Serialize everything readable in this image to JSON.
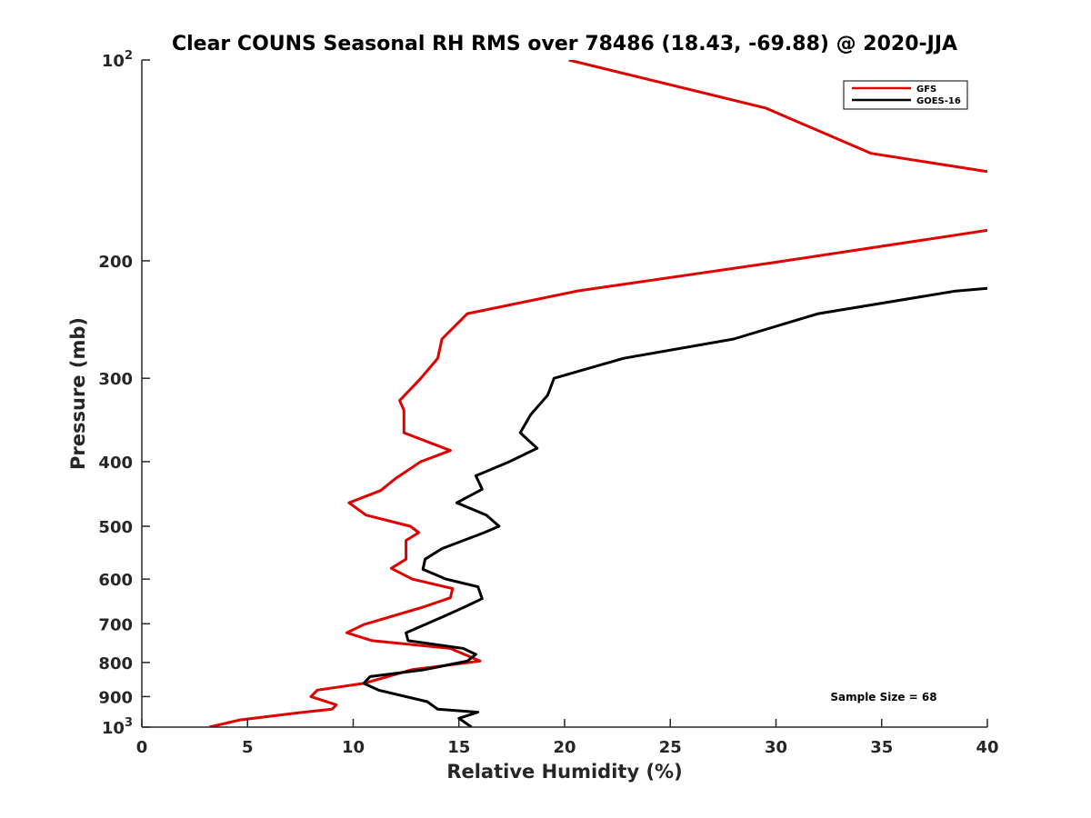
{
  "chart_data": {
    "type": "line",
    "title": "Clear COUNS Seasonal RH RMS over 78486 (18.43, -69.88) @ 2020-JJA",
    "xlabel": "Relative Humidity (%)",
    "ylabel": "Pressure (mb)",
    "xlim": [
      0,
      40
    ],
    "ylim": [
      100,
      1000
    ],
    "y_scale": "log",
    "y_reversed": true,
    "x_ticks": [
      0,
      5,
      10,
      15,
      20,
      25,
      30,
      35,
      40
    ],
    "y_ticks": [
      {
        "value": 100,
        "base": "10",
        "exp": "2"
      },
      {
        "value": 200,
        "label": "200"
      },
      {
        "value": 300,
        "label": "300"
      },
      {
        "value": 400,
        "label": "400"
      },
      {
        "value": 500,
        "label": "500"
      },
      {
        "value": 600,
        "label": "600"
      },
      {
        "value": 700,
        "label": "700"
      },
      {
        "value": 800,
        "label": "800"
      },
      {
        "value": 900,
        "label": "900"
      },
      {
        "value": 1000,
        "base": "10",
        "exp": "3"
      }
    ],
    "legend_position": "top-right",
    "annotation": "Sample Size = 68",
    "series": [
      {
        "name": "GFS",
        "color": "#e00000",
        "points": [
          [
            [
              20.2,
              100
            ],
            [
              29.5,
              118
            ],
            [
              34.5,
              138
            ],
            [
              40.0,
              147
            ]
          ],
          [
            [
              40.0,
              180
            ],
            [
              30.0,
              201
            ],
            [
              20.6,
              222
            ],
            [
              15.4,
              240
            ],
            [
              14.2,
              262
            ],
            [
              14.0,
              280
            ],
            [
              13.2,
              300
            ],
            [
              12.2,
              324
            ],
            [
              12.4,
              335
            ],
            [
              12.4,
              362
            ],
            [
              14.6,
              385
            ],
            [
              13.2,
              400
            ],
            [
              12.0,
              424
            ],
            [
              11.3,
              442
            ],
            [
              9.8,
              461
            ],
            [
              10.6,
              481
            ],
            [
              12.7,
              500
            ],
            [
              13.1,
              511
            ],
            [
              12.5,
              525
            ],
            [
              12.5,
              560
            ],
            [
              11.8,
              578
            ],
            [
              12.8,
              600
            ],
            [
              14.7,
              620
            ],
            [
              14.6,
              640
            ],
            [
              13.3,
              661
            ],
            [
              10.5,
              702
            ],
            [
              9.7,
              722
            ],
            [
              10.9,
              742
            ],
            [
              14.6,
              762
            ],
            [
              16.0,
              796
            ],
            [
              12.8,
              820
            ],
            [
              10.5,
              860
            ],
            [
              8.3,
              880
            ],
            [
              8.0,
              900
            ],
            [
              9.2,
              926
            ],
            [
              9.0,
              940
            ],
            [
              7.4,
              952
            ],
            [
              4.6,
              976
            ],
            [
              3.2,
              1000
            ]
          ]
        ]
      },
      {
        "name": "GOES-16",
        "color": "#000000",
        "points": [
          [
            [
              40.0,
              220
            ],
            [
              38.5,
              222
            ],
            [
              32.0,
              240
            ],
            [
              28.0,
              262
            ],
            [
              22.8,
              280
            ],
            [
              19.5,
              300
            ],
            [
              19.2,
              318
            ],
            [
              18.4,
              340
            ],
            [
              17.9,
              362
            ],
            [
              18.7,
              382
            ],
            [
              17.4,
              400
            ],
            [
              15.8,
              420
            ],
            [
              16.1,
              440
            ],
            [
              14.9,
              461
            ],
            [
              16.3,
              481
            ],
            [
              16.9,
              500
            ],
            [
              16.2,
              511
            ],
            [
              14.2,
              540
            ],
            [
              13.4,
              560
            ],
            [
              13.3,
              580
            ],
            [
              14.4,
              600
            ],
            [
              15.9,
              616
            ],
            [
              16.1,
              642
            ],
            [
              15.3,
              660
            ],
            [
              14.3,
              682
            ],
            [
              12.5,
              722
            ],
            [
              12.6,
              742
            ],
            [
              15.2,
              762
            ],
            [
              15.8,
              778
            ],
            [
              15.4,
              796
            ],
            [
              13.4,
              820
            ],
            [
              10.8,
              840
            ],
            [
              10.5,
              860
            ],
            [
              11.2,
              880
            ],
            [
              13.5,
              916
            ],
            [
              14.0,
              940
            ],
            [
              15.9,
              950
            ],
            [
              15.0,
              970
            ],
            [
              15.6,
              1000
            ]
          ]
        ]
      }
    ]
  }
}
